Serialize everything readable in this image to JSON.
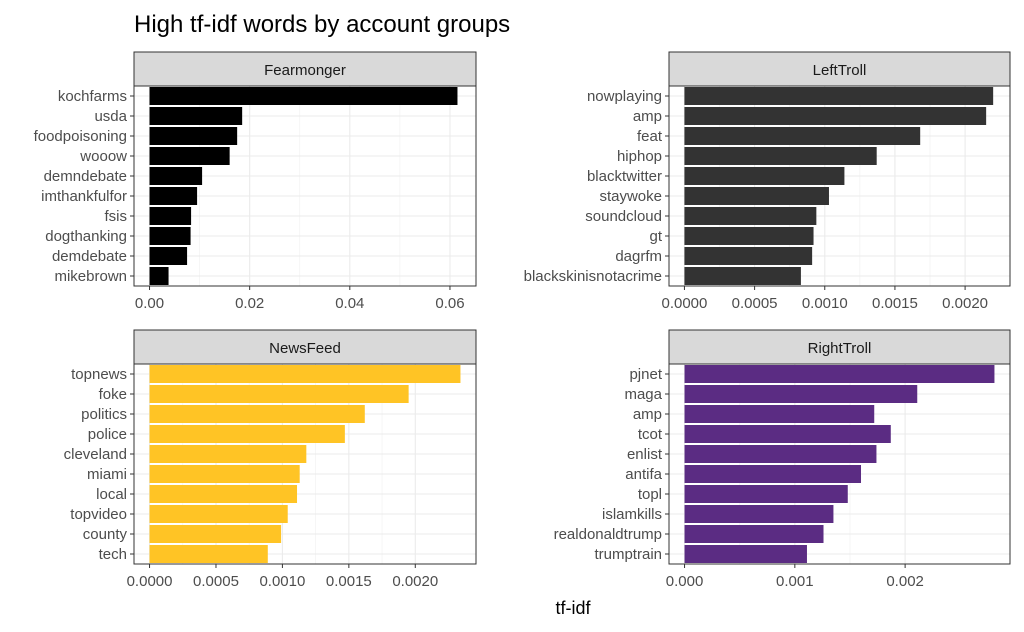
{
  "chart_data": {
    "type": "bar",
    "orientation": "horizontal",
    "title": "High tf-idf words by account groups",
    "xlabel": "tf-idf",
    "ylabel": "",
    "grid": true,
    "facets": [
      {
        "name": "Fearmonger",
        "color": "#000000",
        "categories": [
          "kochfarms",
          "usda",
          "foodpoisoning",
          "wooow",
          "demndebate",
          "imthankfulfor",
          "fsis",
          "dogthanking",
          "demdebate",
          "mikebrown"
        ],
        "values": [
          0.0615,
          0.0185,
          0.0175,
          0.016,
          0.0105,
          0.0095,
          0.0083,
          0.0082,
          0.0075,
          0.0038
        ],
        "xlim": [
          -0.0031,
          0.0652
        ],
        "ticks": [
          0.0,
          0.02,
          0.04,
          0.06
        ],
        "tick_labels": [
          "0.00",
          "0.02",
          "0.04",
          "0.06"
        ]
      },
      {
        "name": "LeftTroll",
        "color": "#333333",
        "categories": [
          "nowplaying",
          "amp",
          "feat",
          "hiphop",
          "blacktwitter",
          "staywoke",
          "soundcloud",
          "gt",
          "dagrfm",
          "blackskinisnotacrime"
        ],
        "values": [
          0.0022,
          0.00215,
          0.00168,
          0.00137,
          0.00114,
          0.00103,
          0.00094,
          0.00092,
          0.00091,
          0.00083
        ],
        "xlim": [
          -0.00011,
          0.00232
        ],
        "ticks": [
          0.0,
          0.0005,
          0.001,
          0.0015,
          0.002
        ],
        "tick_labels": [
          "0.0000",
          "0.0005",
          "0.0010",
          "0.0015",
          "0.0020"
        ]
      },
      {
        "name": "NewsFeed",
        "color": "#FFC425",
        "categories": [
          "topnews",
          "foke",
          "politics",
          "police",
          "cleveland",
          "miami",
          "local",
          "topvideo",
          "county",
          "tech"
        ],
        "values": [
          0.00234,
          0.00195,
          0.00162,
          0.00147,
          0.00118,
          0.00113,
          0.00111,
          0.00104,
          0.00099,
          0.00089
        ],
        "xlim": [
          -0.000117,
          0.002457
        ],
        "ticks": [
          0.0,
          0.0005,
          0.001,
          0.0015,
          0.002
        ],
        "tick_labels": [
          "0.0000",
          "0.0005",
          "0.0010",
          "0.0015",
          "0.0020"
        ]
      },
      {
        "name": "RightTroll",
        "color": "#5B2C83",
        "categories": [
          "pjnet",
          "maga",
          "amp",
          "tcot",
          "enlist",
          "antifa",
          "topl",
          "islamkills",
          "realdonaldtrump",
          "trumptrain"
        ],
        "values": [
          0.00281,
          0.00211,
          0.00172,
          0.00187,
          0.00174,
          0.0016,
          0.00148,
          0.00135,
          0.00126,
          0.00111
        ],
        "xlim": [
          -0.000141,
          0.002951
        ],
        "ticks": [
          0.0,
          0.001,
          0.002
        ],
        "tick_labels": [
          "0.000",
          "0.001",
          "0.002"
        ]
      }
    ]
  }
}
